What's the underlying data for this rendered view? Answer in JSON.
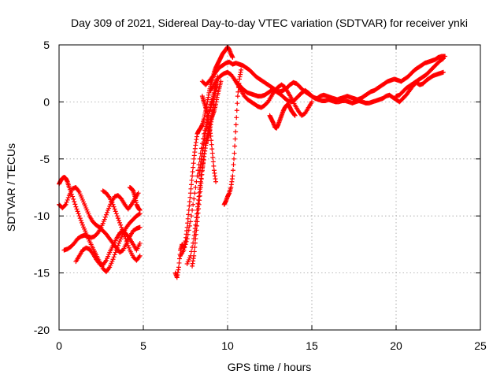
{
  "chart_data": {
    "type": "scatter",
    "title": "Day 309 of 2021, Sidereal Day-to-day VTEC variation (SDTVAR) for receiver ynki",
    "xlabel": "GPS time / hours",
    "ylabel": "SDTVAR / TECUs",
    "xlim": [
      0,
      25
    ],
    "ylim": [
      -20,
      5
    ],
    "x_ticks": [
      "0",
      "5",
      "10",
      "15",
      "20",
      "25"
    ],
    "y_ticks": [
      "5",
      "0",
      "-5",
      "-10",
      "-15",
      "-20"
    ],
    "grid": true,
    "legend": "none",
    "marker": "plus",
    "color": "#ff0000",
    "series": [
      {
        "x": [
          0.0,
          0.1,
          0.2,
          0.3,
          0.4,
          0.5,
          0.6,
          0.8,
          1.0,
          1.2,
          1.4,
          1.6,
          1.8,
          2.0,
          2.2,
          2.4,
          2.6,
          2.8,
          3.0,
          3.2,
          3.4,
          3.6,
          3.8,
          4.0,
          4.2,
          4.4,
          4.6,
          4.8
        ],
        "y": [
          -7.2,
          -6.9,
          -6.7,
          -6.6,
          -6.7,
          -7.0,
          -7.5,
          -8.3,
          -9.2,
          -10.0,
          -10.8,
          -11.5,
          -12.2,
          -12.8,
          -13.4,
          -14.0,
          -14.6,
          -14.9,
          -14.5,
          -13.8,
          -13.0,
          -12.2,
          -11.5,
          -11.0,
          -10.6,
          -10.3,
          -10.0,
          -9.8
        ]
      },
      {
        "x": [
          0.0,
          0.2,
          0.4,
          0.6,
          0.8,
          1.0,
          1.2,
          1.4,
          1.6,
          1.8,
          2.0,
          2.2,
          2.4,
          2.6,
          2.8,
          3.0,
          3.2,
          3.4,
          3.6,
          3.8,
          4.0,
          4.2,
          4.4,
          4.6,
          4.8
        ],
        "y": [
          -9.0,
          -9.3,
          -9.0,
          -8.2,
          -7.6,
          -7.5,
          -7.9,
          -8.6,
          -9.3,
          -10.0,
          -10.5,
          -10.8,
          -11.0,
          -11.3,
          -11.6,
          -12.0,
          -12.4,
          -12.8,
          -13.2,
          -13.0,
          -12.4,
          -11.8,
          -11.3,
          -11.1,
          -11.0
        ]
      },
      {
        "x": [
          0.3,
          0.5,
          0.7,
          0.9,
          1.1,
          1.3,
          1.5,
          1.7,
          1.9,
          2.1,
          2.3,
          2.5,
          2.7,
          2.9,
          3.1,
          3.3,
          3.5,
          3.7,
          3.9,
          4.1,
          4.3,
          4.5,
          4.7
        ],
        "y": [
          -13.0,
          -12.9,
          -12.7,
          -12.4,
          -12.0,
          -11.8,
          -11.7,
          -11.8,
          -11.9,
          -11.8,
          -11.5,
          -11.0,
          -10.3,
          -9.5,
          -8.8,
          -8.3,
          -8.2,
          -8.5,
          -9.0,
          -9.4,
          -9.0,
          -8.5,
          -8.0
        ]
      },
      {
        "x": [
          1.0,
          1.2,
          1.4,
          1.6,
          1.8,
          2.0,
          2.2,
          2.4,
          2.6,
          2.8,
          3.0,
          3.2,
          3.4,
          3.6,
          3.8,
          4.0,
          4.2,
          4.4,
          4.6,
          4.8
        ],
        "y": [
          -14.0,
          -13.5,
          -13.0,
          -12.8,
          -12.9,
          -13.3,
          -13.8,
          -14.2,
          -14.3,
          -13.9,
          -13.2,
          -12.6,
          -12.0,
          -11.5,
          -11.3,
          -11.6,
          -12.0,
          -12.5,
          -13.0,
          -12.4
        ]
      },
      {
        "x": [
          2.6,
          2.8,
          3.0,
          3.2,
          3.4,
          3.6,
          3.8,
          4.0,
          4.2,
          4.4,
          4.6,
          4.8
        ],
        "y": [
          -7.8,
          -8.0,
          -8.4,
          -9.0,
          -9.8,
          -10.6,
          -11.4,
          -12.2,
          -13.0,
          -13.6,
          -13.9,
          -13.5
        ]
      },
      {
        "x": [
          4.2,
          4.3,
          4.4,
          4.5,
          4.6,
          4.7,
          4.8
        ],
        "y": [
          -7.5,
          -7.6,
          -7.8,
          -8.3,
          -9.0,
          -9.3,
          -9.5
        ]
      },
      {
        "x": [
          6.9,
          7.0,
          7.1,
          7.2,
          7.3,
          7.4,
          7.5,
          7.6,
          7.7,
          7.8,
          7.9,
          8.0,
          8.1,
          8.2,
          8.3,
          8.4,
          8.5,
          8.6,
          8.7,
          8.8,
          8.9,
          9.0,
          9.1,
          9.2,
          9.3,
          9.4,
          9.5,
          9.6,
          9.7,
          9.8,
          9.9,
          10.0,
          10.1,
          10.2,
          10.3
        ],
        "y": [
          -15.0,
          -15.4,
          -14.5,
          -13.0,
          -12.5,
          -12.8,
          -12.2,
          -11.0,
          -9.5,
          -8.0,
          -6.5,
          -5.0,
          -3.8,
          -2.8,
          -2.5,
          -2.3,
          -2.0,
          -1.5,
          -0.8,
          0.0,
          0.8,
          1.5,
          2.0,
          2.6,
          3.0,
          3.3,
          3.6,
          3.9,
          4.2,
          4.4,
          4.6,
          4.8,
          4.6,
          4.2,
          3.9
        ]
      },
      {
        "x": [
          7.2,
          7.4,
          7.6,
          7.8,
          8.0,
          8.2,
          8.4,
          8.6,
          8.8,
          9.0,
          9.2,
          9.4
        ],
        "y": [
          -13.5,
          -13.0,
          -12.0,
          -10.5,
          -8.5,
          -6.5,
          -4.5,
          -2.8,
          -1.5,
          -0.5,
          0.5,
          1.5
        ]
      },
      {
        "x": [
          7.6,
          7.8,
          8.0,
          8.1,
          8.2,
          8.3,
          8.4,
          8.5,
          8.6,
          8.7,
          8.8,
          8.9,
          9.0,
          9.1,
          9.2
        ],
        "y": [
          -14.2,
          -13.5,
          -12.0,
          -10.8,
          -9.5,
          -8.3,
          -7.0,
          -5.8,
          -4.8,
          -3.8,
          -3.2,
          -2.8,
          -2.0,
          -1.0,
          0.0
        ]
      },
      {
        "x": [
          7.9,
          8.0,
          8.1,
          8.2,
          8.3,
          8.4,
          8.5,
          8.6,
          8.7,
          8.8,
          8.9,
          9.0,
          9.1,
          9.2,
          9.3,
          9.4,
          9.5,
          9.6
        ],
        "y": [
          -14.4,
          -13.5,
          -12.0,
          -10.5,
          -9.0,
          -7.5,
          -6.0,
          -4.8,
          -3.8,
          -3.0,
          -2.2,
          -1.6,
          -1.2,
          -0.8,
          -0.2,
          0.6,
          1.2,
          1.8
        ]
      },
      {
        "x": [
          8.3,
          8.4,
          8.5,
          8.6,
          8.7,
          8.8,
          8.9,
          9.0,
          9.1,
          9.2,
          9.3,
          9.4
        ],
        "y": [
          -6.5,
          -5.5,
          -4.5,
          -3.5,
          -2.5,
          -1.8,
          -1.0,
          -0.3,
          0.2,
          0.8,
          1.5,
          2.2
        ]
      },
      {
        "x": [
          8.5,
          8.6,
          8.7,
          8.8,
          8.9,
          9.0,
          9.1,
          9.2,
          9.3
        ],
        "y": [
          0.5,
          0.0,
          -0.5,
          -1.0,
          -2.0,
          -3.0,
          -4.5,
          -6.0,
          -7.0
        ]
      },
      {
        "x": [
          9.8,
          9.9,
          10.0,
          10.1,
          10.2,
          10.3,
          10.4,
          10.5,
          10.6,
          10.7,
          10.8
        ],
        "y": [
          -9.0,
          -8.7,
          -8.3,
          -8.0,
          -7.5,
          -6.5,
          -4.5,
          -2.0,
          0.5,
          2.0,
          2.8
        ]
      },
      {
        "x": [
          8.5,
          8.7,
          8.9,
          9.1,
          9.3,
          9.5,
          9.7,
          9.9,
          10.1,
          10.3,
          10.5,
          10.7,
          10.9,
          11.1,
          11.3,
          11.5,
          11.7,
          11.9,
          12.1,
          12.3,
          12.5,
          12.7,
          12.9,
          13.1,
          13.3,
          13.5,
          13.7,
          13.9,
          14.1,
          14.3,
          14.5,
          14.7,
          14.9,
          15.1,
          15.3,
          15.5,
          15.7,
          15.9,
          16.1,
          16.3,
          16.5,
          16.7,
          16.9,
          17.1,
          17.3,
          17.5,
          17.7,
          17.9,
          18.1,
          18.3,
          18.5,
          18.7,
          18.9,
          19.1,
          19.3,
          19.5,
          19.7,
          19.9,
          20.1,
          20.3,
          20.5,
          20.7,
          20.9,
          21.1,
          21.3,
          21.5,
          21.7,
          21.9,
          22.1,
          22.3,
          22.5,
          22.7,
          22.9
        ],
        "y": [
          1.8,
          1.5,
          1.8,
          2.2,
          2.6,
          3.0,
          3.2,
          3.4,
          3.5,
          3.3,
          3.4,
          3.3,
          3.2,
          3.0,
          2.8,
          2.5,
          2.2,
          2.0,
          1.8,
          1.6,
          1.4,
          1.2,
          1.0,
          0.9,
          1.0,
          1.2,
          1.5,
          1.7,
          1.6,
          1.3,
          1.0,
          0.8,
          0.6,
          0.4,
          0.3,
          0.5,
          0.6,
          0.5,
          0.4,
          0.3,
          0.2,
          0.3,
          0.4,
          0.5,
          0.4,
          0.3,
          0.2,
          0.3,
          0.5,
          0.7,
          0.9,
          1.0,
          1.2,
          1.4,
          1.6,
          1.8,
          1.9,
          2.0,
          1.9,
          1.8,
          2.0,
          2.2,
          2.5,
          2.8,
          3.0,
          3.2,
          3.4,
          3.5,
          3.6,
          3.7,
          3.9,
          4.0,
          4.0
        ]
      },
      {
        "x": [
          9.0,
          9.2,
          9.4,
          9.6,
          9.8,
          10.0,
          10.2,
          10.4,
          10.6,
          10.8,
          11.0,
          11.2,
          11.4,
          11.6,
          11.8,
          12.0,
          12.2,
          12.4,
          12.6,
          12.8,
          13.0,
          13.2,
          13.4,
          13.6,
          13.8,
          14.0,
          14.2,
          14.4,
          14.6,
          14.8,
          15.0,
          15.2,
          15.4,
          15.6,
          15.8,
          16.0,
          16.2,
          16.4,
          16.6,
          16.8,
          17.0,
          17.2,
          17.4,
          17.6,
          17.8,
          18.0,
          18.2,
          18.4,
          18.6,
          18.8,
          19.0,
          19.2,
          19.4,
          19.6,
          19.8,
          20.0,
          20.2,
          20.4,
          20.6,
          20.8,
          21.0,
          21.2,
          21.4,
          21.6,
          21.8,
          22.0,
          22.2,
          22.4,
          22.6,
          22.8
        ],
        "y": [
          1.0,
          1.5,
          2.0,
          2.3,
          2.5,
          2.6,
          2.4,
          2.0,
          1.6,
          1.3,
          1.0,
          0.8,
          0.7,
          0.6,
          0.5,
          0.5,
          0.6,
          0.8,
          1.0,
          1.0,
          0.8,
          0.6,
          0.3,
          0.1,
          0.0,
          0.2,
          0.5,
          0.8,
          1.0,
          0.8,
          0.5,
          0.3,
          0.2,
          0.1,
          0.1,
          0.2,
          0.1,
          0.0,
          0.0,
          0.1,
          0.1,
          0.0,
          -0.1,
          0.0,
          0.1,
          0.0,
          -0.1,
          -0.1,
          0.0,
          0.1,
          0.2,
          0.3,
          0.5,
          0.6,
          0.4,
          0.2,
          0.0,
          0.3,
          0.6,
          1.0,
          1.4,
          1.7,
          1.5,
          1.6,
          1.9,
          2.1,
          2.3,
          2.4,
          2.5,
          2.6
        ]
      },
      {
        "x": [
          10.4,
          10.6,
          10.8,
          11.0,
          11.2,
          11.4,
          11.6,
          11.8,
          12.0,
          12.2,
          12.4,
          12.6,
          12.8,
          13.0,
          13.2,
          13.4,
          13.6,
          13.8,
          14.0,
          14.2,
          14.4,
          14.6,
          14.8,
          15.0
        ],
        "y": [
          2.0,
          1.5,
          1.0,
          0.5,
          0.2,
          0.0,
          -0.2,
          -0.4,
          -0.5,
          -0.3,
          0.0,
          0.5,
          1.0,
          1.3,
          1.5,
          1.3,
          0.8,
          0.3,
          -0.3,
          -0.8,
          -1.2,
          -1.0,
          -0.5,
          0.0
        ]
      },
      {
        "x": [
          12.5,
          12.6,
          12.7,
          12.8,
          12.9,
          13.0,
          13.1,
          13.2,
          13.3,
          13.4,
          13.5,
          13.6,
          13.7,
          13.8,
          13.9,
          14.0
        ],
        "y": [
          -1.2,
          -1.5,
          -1.8,
          -2.2,
          -2.3,
          -2.0,
          -1.6,
          -1.2,
          -0.8,
          -0.5,
          -0.3,
          -0.2,
          -0.5,
          -0.8,
          -1.0,
          -1.2
        ]
      },
      {
        "x": [
          20.0,
          20.2,
          20.4,
          20.6,
          20.8,
          21.0,
          21.2,
          21.4,
          21.6,
          21.8,
          22.0,
          22.2,
          22.4,
          22.6,
          22.8
        ],
        "y": [
          0.5,
          0.6,
          0.9,
          1.2,
          1.4,
          1.6,
          1.8,
          2.0,
          2.2,
          2.4,
          2.7,
          3.0,
          3.3,
          3.6,
          3.8
        ]
      }
    ]
  }
}
